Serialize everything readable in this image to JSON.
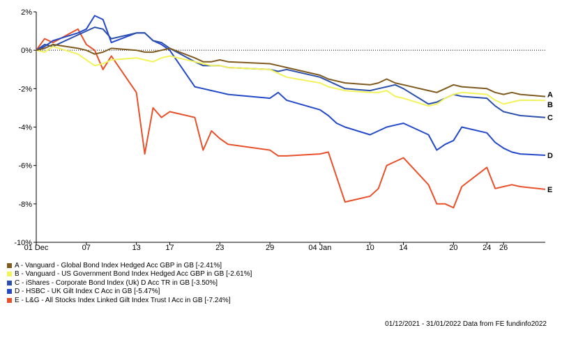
{
  "chart_data": {
    "type": "line",
    "y_unit": "%",
    "ylim": [
      -10,
      2
    ],
    "yticks": [
      2,
      0,
      -2,
      -4,
      -6,
      -8,
      -10
    ],
    "ytick_labels": [
      "2%",
      "0%",
      "-2%",
      "-4%",
      "-6%",
      "-8%",
      "-10%"
    ],
    "xtick_labels": [
      "01 Dec",
      "07",
      "13",
      "17",
      "23",
      "29",
      "04 Jan",
      "10",
      "14",
      "20",
      "24",
      "26"
    ],
    "x_dates": [
      "2021-12-01",
      "2021-12-02",
      "2021-12-03",
      "2021-12-06",
      "2021-12-07",
      "2021-12-08",
      "2021-12-09",
      "2021-12-10",
      "2021-12-13",
      "2021-12-14",
      "2021-12-15",
      "2021-12-16",
      "2021-12-17",
      "2021-12-20",
      "2021-12-21",
      "2021-12-22",
      "2021-12-23",
      "2021-12-24",
      "2021-12-29",
      "2021-12-30",
      "2021-12-31",
      "2022-01-04",
      "2022-01-05",
      "2022-01-06",
      "2022-01-07",
      "2022-01-10",
      "2022-01-11",
      "2022-01-12",
      "2022-01-13",
      "2022-01-14",
      "2022-01-17",
      "2022-01-18",
      "2022-01-19",
      "2022-01-20",
      "2022-01-21",
      "2022-01-24",
      "2022-01-25",
      "2022-01-26",
      "2022-01-27",
      "2022-01-28",
      "2022-01-31"
    ],
    "grid": false,
    "series": [
      {
        "id": "A",
        "name": "A - Vanguard - Global Bond Index Hedged Acc GBP in GB [-2.41%]",
        "end_label": "A",
        "color": "#7f5a1e",
        "values": [
          0.0,
          0.1,
          0.3,
          0.1,
          0.0,
          -0.2,
          -0.1,
          0.1,
          0.0,
          -0.1,
          -0.1,
          0.0,
          0.1,
          -0.4,
          -0.6,
          -0.6,
          -0.5,
          -0.6,
          -0.7,
          -0.8,
          -0.9,
          -1.3,
          -1.5,
          -1.6,
          -1.7,
          -1.8,
          -1.7,
          -1.5,
          -1.7,
          -1.8,
          -2.1,
          -2.2,
          -2.0,
          -1.8,
          -1.9,
          -2.0,
          -2.2,
          -2.3,
          -2.2,
          -2.3,
          -2.41
        ]
      },
      {
        "id": "B",
        "name": "B - Vanguard - US Government Bond Index Hedged Acc GBP in GB [-2.61%]",
        "end_label": "B",
        "color": "#f2f25a",
        "values": [
          0.0,
          -0.1,
          0.2,
          -0.2,
          -0.5,
          -0.8,
          -0.7,
          -0.5,
          -0.4,
          -0.5,
          -0.6,
          -0.4,
          -0.3,
          -0.6,
          -0.7,
          -0.8,
          -0.8,
          -0.9,
          -1.0,
          -1.2,
          -1.4,
          -1.7,
          -1.9,
          -2.0,
          -2.1,
          -2.2,
          -2.2,
          -2.1,
          -2.4,
          -2.5,
          -2.9,
          -2.8,
          -2.5,
          -2.3,
          -2.2,
          -2.3,
          -2.6,
          -2.8,
          -2.7,
          -2.6,
          -2.61
        ]
      },
      {
        "id": "C",
        "name": "C - iShares - Corporate Bond Index (Uk) D Acc TR in GB [-3.50%]",
        "end_label": "C",
        "color": "#2b4faa",
        "values": [
          0.0,
          0.3,
          0.2,
          0.8,
          1.0,
          1.2,
          1.1,
          0.6,
          0.9,
          0.9,
          0.5,
          0.4,
          0.1,
          -0.6,
          -0.8,
          -0.8,
          -0.8,
          -0.9,
          -1.0,
          -1.1,
          -1.0,
          -1.4,
          -1.6,
          -1.8,
          -2.0,
          -2.1,
          -2.0,
          -1.9,
          -1.8,
          -2.0,
          -2.8,
          -2.7,
          -2.5,
          -2.3,
          -2.4,
          -2.5,
          -2.9,
          -3.2,
          -3.3,
          -3.4,
          -3.5
        ]
      },
      {
        "id": "D",
        "name": "D - HSBC - UK Gilt Index C Acc in GB [-5.47%]",
        "end_label": "D",
        "color": "#2348c8",
        "values": [
          0.0,
          0.2,
          0.5,
          0.9,
          1.1,
          1.8,
          1.6,
          0.4,
          0.9,
          0.9,
          0.5,
          0.3,
          0.0,
          -1.9,
          -2.0,
          -2.1,
          -2.2,
          -2.3,
          -2.5,
          -2.2,
          -2.6,
          -3.1,
          -3.4,
          -3.8,
          -4.0,
          -4.4,
          -4.2,
          -4.0,
          -3.9,
          -3.8,
          -4.4,
          -5.2,
          -4.9,
          -4.7,
          -4.0,
          -4.3,
          -4.8,
          -5.1,
          -5.3,
          -5.4,
          -5.47
        ]
      },
      {
        "id": "E",
        "name": "E - L&G - All Stocks Index Linked Gilt Index Trust I Acc in GB [-7.24%]",
        "end_label": "E",
        "color": "#e8502a",
        "values": [
          0.0,
          0.6,
          0.4,
          1.1,
          0.3,
          0.0,
          -1.0,
          -0.3,
          -2.2,
          -5.4,
          -3.0,
          -3.5,
          -3.2,
          -3.5,
          -5.2,
          -4.2,
          -4.6,
          -4.9,
          -5.2,
          -5.5,
          -5.5,
          -5.4,
          -5.3,
          -6.6,
          -7.9,
          -7.6,
          -7.2,
          -6.0,
          -5.8,
          -5.6,
          -7.0,
          -8.0,
          -8.0,
          -8.2,
          -7.1,
          -6.1,
          -7.2,
          -7.1,
          -7.0,
          -7.1,
          -7.24
        ]
      }
    ]
  },
  "footer": "01/12/2021 - 31/01/2022 Data from FE fundinfo2022"
}
